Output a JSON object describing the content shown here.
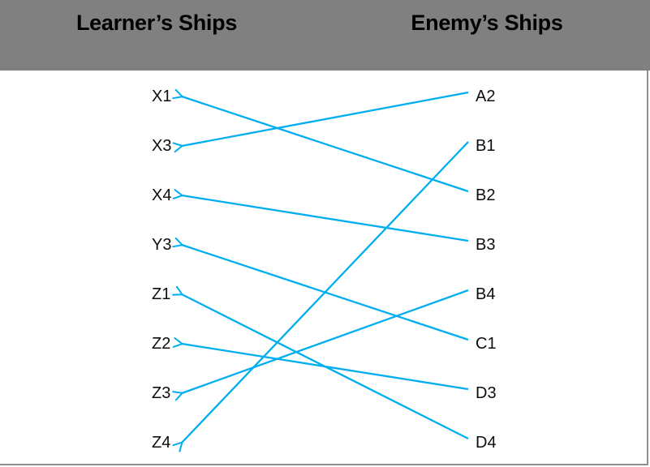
{
  "header": {
    "left_title": "Learner’s Ships",
    "right_title": "Enemy’s Ships",
    "background": "#808080",
    "text_color": "#000000"
  },
  "columns": {
    "left": {
      "role": "learner",
      "labels": [
        "X1",
        "X3",
        "X4",
        "Y3",
        "Z1",
        "Z2",
        "Z3",
        "Z4"
      ]
    },
    "right": {
      "role": "enemy",
      "labels": [
        "A2",
        "B1",
        "B2",
        "B3",
        "B4",
        "C1",
        "D3",
        "D4"
      ]
    }
  },
  "connections": [
    {
      "from": "A2",
      "to": "X3"
    },
    {
      "from": "B1",
      "to": "Z4"
    },
    {
      "from": "B2",
      "to": "X1"
    },
    {
      "from": "B3",
      "to": "X4"
    },
    {
      "from": "B4",
      "to": "Z3"
    },
    {
      "from": "C1",
      "to": "Y3"
    },
    {
      "from": "D3",
      "to": "Z2"
    },
    {
      "from": "D4",
      "to": "Z1"
    }
  ],
  "style": {
    "line_color": "#00AEEF",
    "border_color": "#8F8F8F",
    "label_color": "#0d0d0d"
  }
}
